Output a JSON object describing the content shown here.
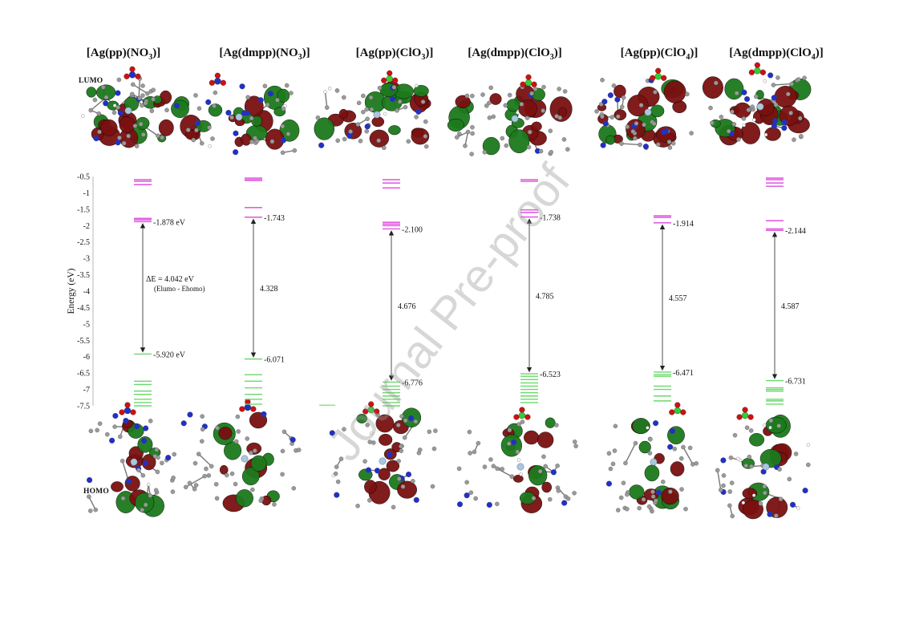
{
  "compounds": [
    {
      "base": "[Ag(pp)(NO",
      "sub": "3",
      "tail": ")]",
      "lumo": "-1.878 eV",
      "homo": "-5.920 eV",
      "gap": "4.042 eV"
    },
    {
      "base": "[Ag(dmpp)(NO",
      "sub": "3",
      "tail": ")]",
      "lumo": "-1.743",
      "homo": "-6.071",
      "gap": "4.328"
    },
    {
      "base": "[Ag(pp)(ClO",
      "sub": "3",
      "tail": ")]",
      "lumo": "-2.100",
      "homo": "-6.776",
      "gap": "4.676"
    },
    {
      "base": "[Ag(dmpp)(ClO",
      "sub": "3",
      "tail": ")]",
      "lumo": "-1.738",
      "homo": "-6.523",
      "gap": "4.785"
    },
    {
      "base": "[Ag(pp)(ClO",
      "sub": "4",
      "tail": ")]",
      "lumo": "-1.914",
      "homo": "-6.471",
      "gap": "4.557"
    },
    {
      "base": "[Ag(dmpp)(ClO",
      "sub": "4",
      "tail": ")]",
      "lumo": "-2.144",
      "homo": "-6.731",
      "gap": "4.587"
    }
  ],
  "labels": {
    "lumo": "LUMO",
    "homo": "HOMO",
    "gap_prefix": "ΔE = ",
    "gap_formula": "(Elumo - Ehomo)",
    "y_axis": "Energy (eV)"
  },
  "axis": {
    "ticks": [
      "-0.5",
      "-1",
      "-1.5",
      "-2",
      "-2.5",
      "-3",
      "-3.5",
      "-4",
      "-4.5",
      "-5",
      "-5.5",
      "-6",
      "-6.5",
      "-7",
      "-7.5"
    ],
    "min": -7.5,
    "max": -0.5
  },
  "colors": {
    "lumo_levels": "#e060e0",
    "homo_levels": "#6cd86c",
    "orbital_green": "#1c7a1c",
    "orbital_red": "#7a1010",
    "carbon": "#9a9a9a",
    "nitrogen": "#2030c8",
    "oxygen": "#d01010",
    "chlorine": "#30d030",
    "silver": "#a8c8e0"
  },
  "levels": [
    {
      "lumo": [
        -0.6,
        -0.65,
        -0.75,
        -1.78,
        -1.82,
        -1.878
      ],
      "homo": [
        -5.92,
        -6.75,
        -6.85,
        -7.05,
        -7.15,
        -7.3,
        -7.4,
        -7.5
      ]
    },
    {
      "lumo": [
        -0.55,
        -0.6,
        -0.62,
        -1.45,
        -1.743
      ],
      "homo": [
        -6.071,
        -6.55,
        -6.75,
        -6.95,
        -7.15,
        -7.3,
        -7.45
      ]
    },
    {
      "lumo": [
        -0.6,
        -0.7,
        -0.85,
        -1.9,
        -1.95,
        -2.0,
        -2.1
      ],
      "homo": [
        -6.776,
        -6.9,
        -7.0,
        -7.1,
        -7.2,
        -7.3,
        -7.4,
        -7.5
      ]
    },
    {
      "lumo": [
        -0.6,
        -0.65,
        -1.52,
        -1.6,
        -1.738
      ],
      "homo": [
        -6.523,
        -6.6,
        -6.7,
        -6.8,
        -6.9,
        -7.0,
        -7.1,
        -7.2,
        -7.3,
        -7.4
      ]
    },
    {
      "lumo": [
        -1.7,
        -1.75,
        -1.914
      ],
      "homo": [
        -6.471,
        -6.55,
        -6.6,
        -6.9,
        -7.0,
        -7.2,
        -7.35
      ]
    },
    {
      "lumo": [
        -0.55,
        -0.6,
        -0.7,
        -0.8,
        -1.85,
        -2.1,
        -2.144
      ],
      "homo": [
        -6.731,
        -6.95,
        -7.0,
        -7.05,
        -7.3,
        -7.35,
        -7.45
      ]
    }
  ],
  "watermark": "Journal Pre-proof"
}
